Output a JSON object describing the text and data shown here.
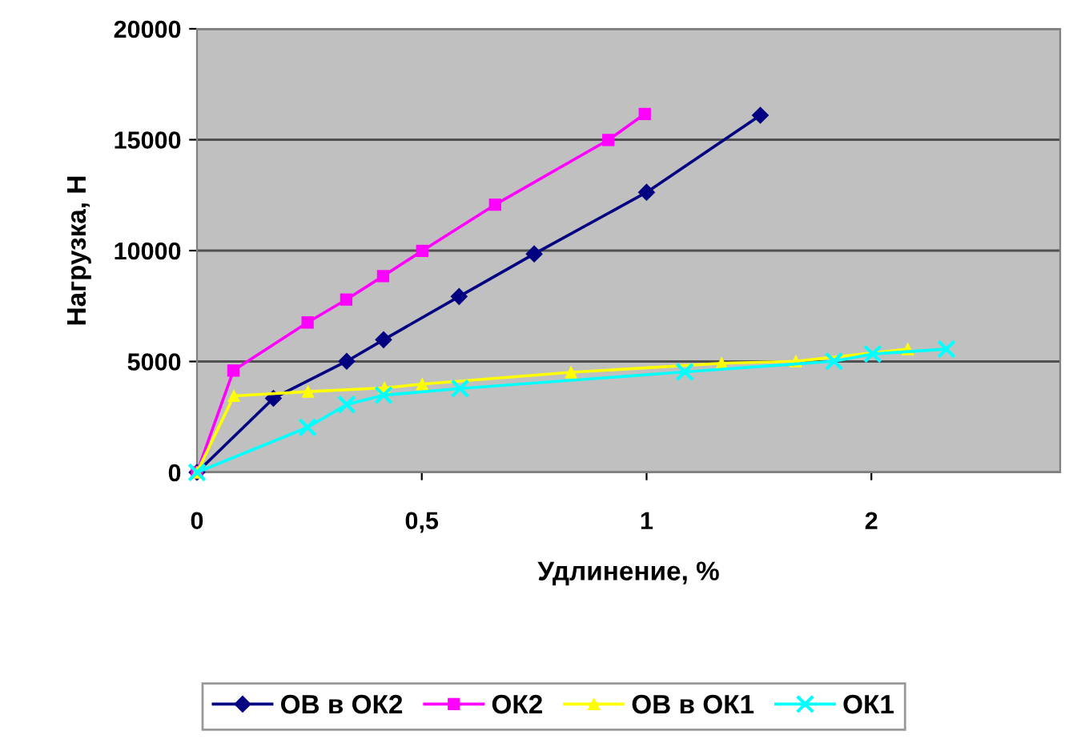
{
  "chart_data": {
    "type": "line",
    "xlabel": "Удлинение, %",
    "ylabel": "Нагрузка, Н",
    "xlim": [
      0,
      1.92
    ],
    "xticks": [
      0,
      {
        "value": 0.5,
        "label": "0,5"
      },
      1,
      {
        "value": 1.5,
        "label": "2"
      }
    ],
    "ylim": [
      0,
      20000
    ],
    "yticks": [
      0,
      5000,
      10000,
      15000,
      20000
    ],
    "grid": "y",
    "legend": "bottom",
    "series": [
      {
        "name": "ОВ в ОК2",
        "color": "#000080",
        "marker": "diamond",
        "x": [
          0,
          0.17,
          0.333,
          0.415,
          0.583,
          0.75,
          1.0,
          1.253
        ],
        "values": [
          0,
          3340,
          5010,
          5980,
          7930,
          9850,
          12630,
          16100
        ]
      },
      {
        "name": "ОК2",
        "color": "#ff00ff",
        "marker": "square",
        "x": [
          0,
          0.081,
          0.246,
          0.332,
          0.414,
          0.501,
          0.663,
          0.915,
          0.996
        ],
        "values": [
          0,
          4590,
          6760,
          7790,
          8850,
          9990,
          12070,
          14990,
          16160
        ]
      },
      {
        "name": "ОВ в ОК1",
        "color": "#ffff00",
        "marker": "triangle",
        "x": [
          0,
          0.082,
          0.247,
          0.417,
          0.501,
          0.832,
          1.167,
          1.332,
          1.581
        ],
        "values": [
          0,
          3450,
          3640,
          3810,
          3980,
          4510,
          4920,
          5010,
          5560
        ]
      },
      {
        "name": "ОК1",
        "color": "#00ffff",
        "marker": "cross",
        "x": [
          0,
          0.246,
          0.333,
          0.415,
          0.585,
          1.085,
          1.417,
          1.503,
          1.667
        ],
        "values": [
          0,
          2030,
          3060,
          3480,
          3780,
          4530,
          5010,
          5340,
          5560
        ]
      }
    ]
  }
}
